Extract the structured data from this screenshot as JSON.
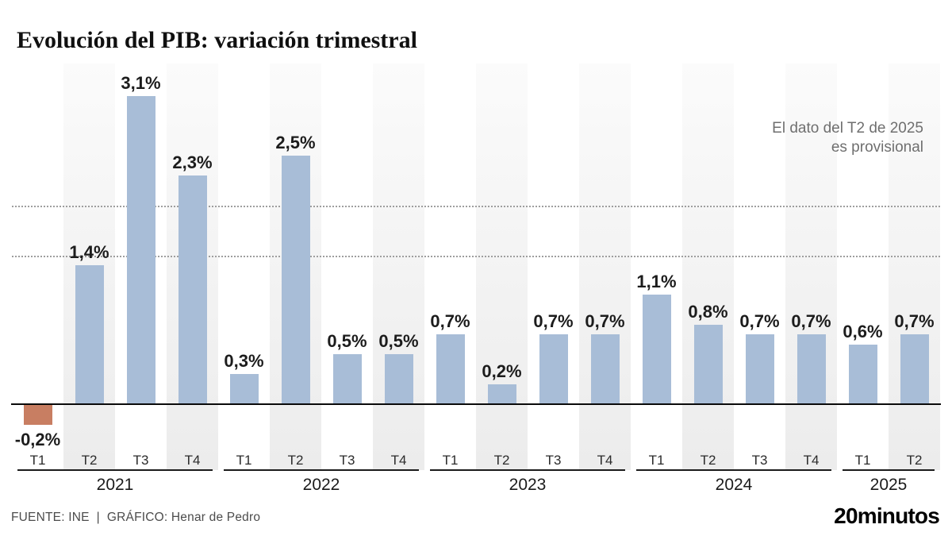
{
  "title": "Evolución del PIB: variación trimestral",
  "annotation": {
    "line1": "El dato del T2 de 2025",
    "line2": "es provisional"
  },
  "footer": {
    "source": "FUENTE: INE",
    "separator": "|",
    "credit": "GRÁFICO: Henar de Pedro"
  },
  "brand": {
    "logo": "20minutos"
  },
  "colors": {
    "bar_positive": "#a8bdd7",
    "bar_negative": "#c87e62",
    "band": "#ececec",
    "gridline": "#9e9e9e",
    "zero_line": "#0a0a0a",
    "text_dark": "#1c1c1c",
    "text_muted": "#6f6f6f"
  },
  "chart_data": {
    "type": "bar",
    "title": "Evolución del PIB: variación trimestral",
    "unit": "%",
    "xlabel": "",
    "ylabel": "",
    "ylim": [
      -0.5,
      3.45
    ],
    "gridlines_at": [
      1.5,
      2.0
    ],
    "grid_style": "dotted",
    "legend": "none",
    "banded_quarters": [
      "T2",
      "T4"
    ],
    "groups": [
      {
        "year": "2021",
        "quarters": [
          {
            "label": "T1",
            "value": -0.2,
            "display": "-0,2%"
          },
          {
            "label": "T2",
            "value": 1.4,
            "display": "1,4%"
          },
          {
            "label": "T3",
            "value": 3.1,
            "display": "3,1%"
          },
          {
            "label": "T4",
            "value": 2.3,
            "display": "2,3%"
          }
        ]
      },
      {
        "year": "2022",
        "quarters": [
          {
            "label": "T1",
            "value": 0.3,
            "display": "0,3%"
          },
          {
            "label": "T2",
            "value": 2.5,
            "display": "2,5%"
          },
          {
            "label": "T3",
            "value": 0.5,
            "display": "0,5%"
          },
          {
            "label": "T4",
            "value": 0.5,
            "display": "0,5%"
          }
        ]
      },
      {
        "year": "2023",
        "quarters": [
          {
            "label": "T1",
            "value": 0.7,
            "display": "0,7%"
          },
          {
            "label": "T2",
            "value": 0.2,
            "display": "0,2%"
          },
          {
            "label": "T3",
            "value": 0.7,
            "display": "0,7%"
          },
          {
            "label": "T4",
            "value": 0.7,
            "display": "0,7%"
          }
        ]
      },
      {
        "year": "2024",
        "quarters": [
          {
            "label": "T1",
            "value": 1.1,
            "display": "1,1%"
          },
          {
            "label": "T2",
            "value": 0.8,
            "display": "0,8%"
          },
          {
            "label": "T3",
            "value": 0.7,
            "display": "0,7%"
          },
          {
            "label": "T4",
            "value": 0.7,
            "display": "0,7%"
          }
        ]
      },
      {
        "year": "2025",
        "quarters": [
          {
            "label": "T1",
            "value": 0.6,
            "display": "0,6%"
          },
          {
            "label": "T2",
            "value": 0.7,
            "display": "0,7%"
          }
        ]
      }
    ]
  }
}
